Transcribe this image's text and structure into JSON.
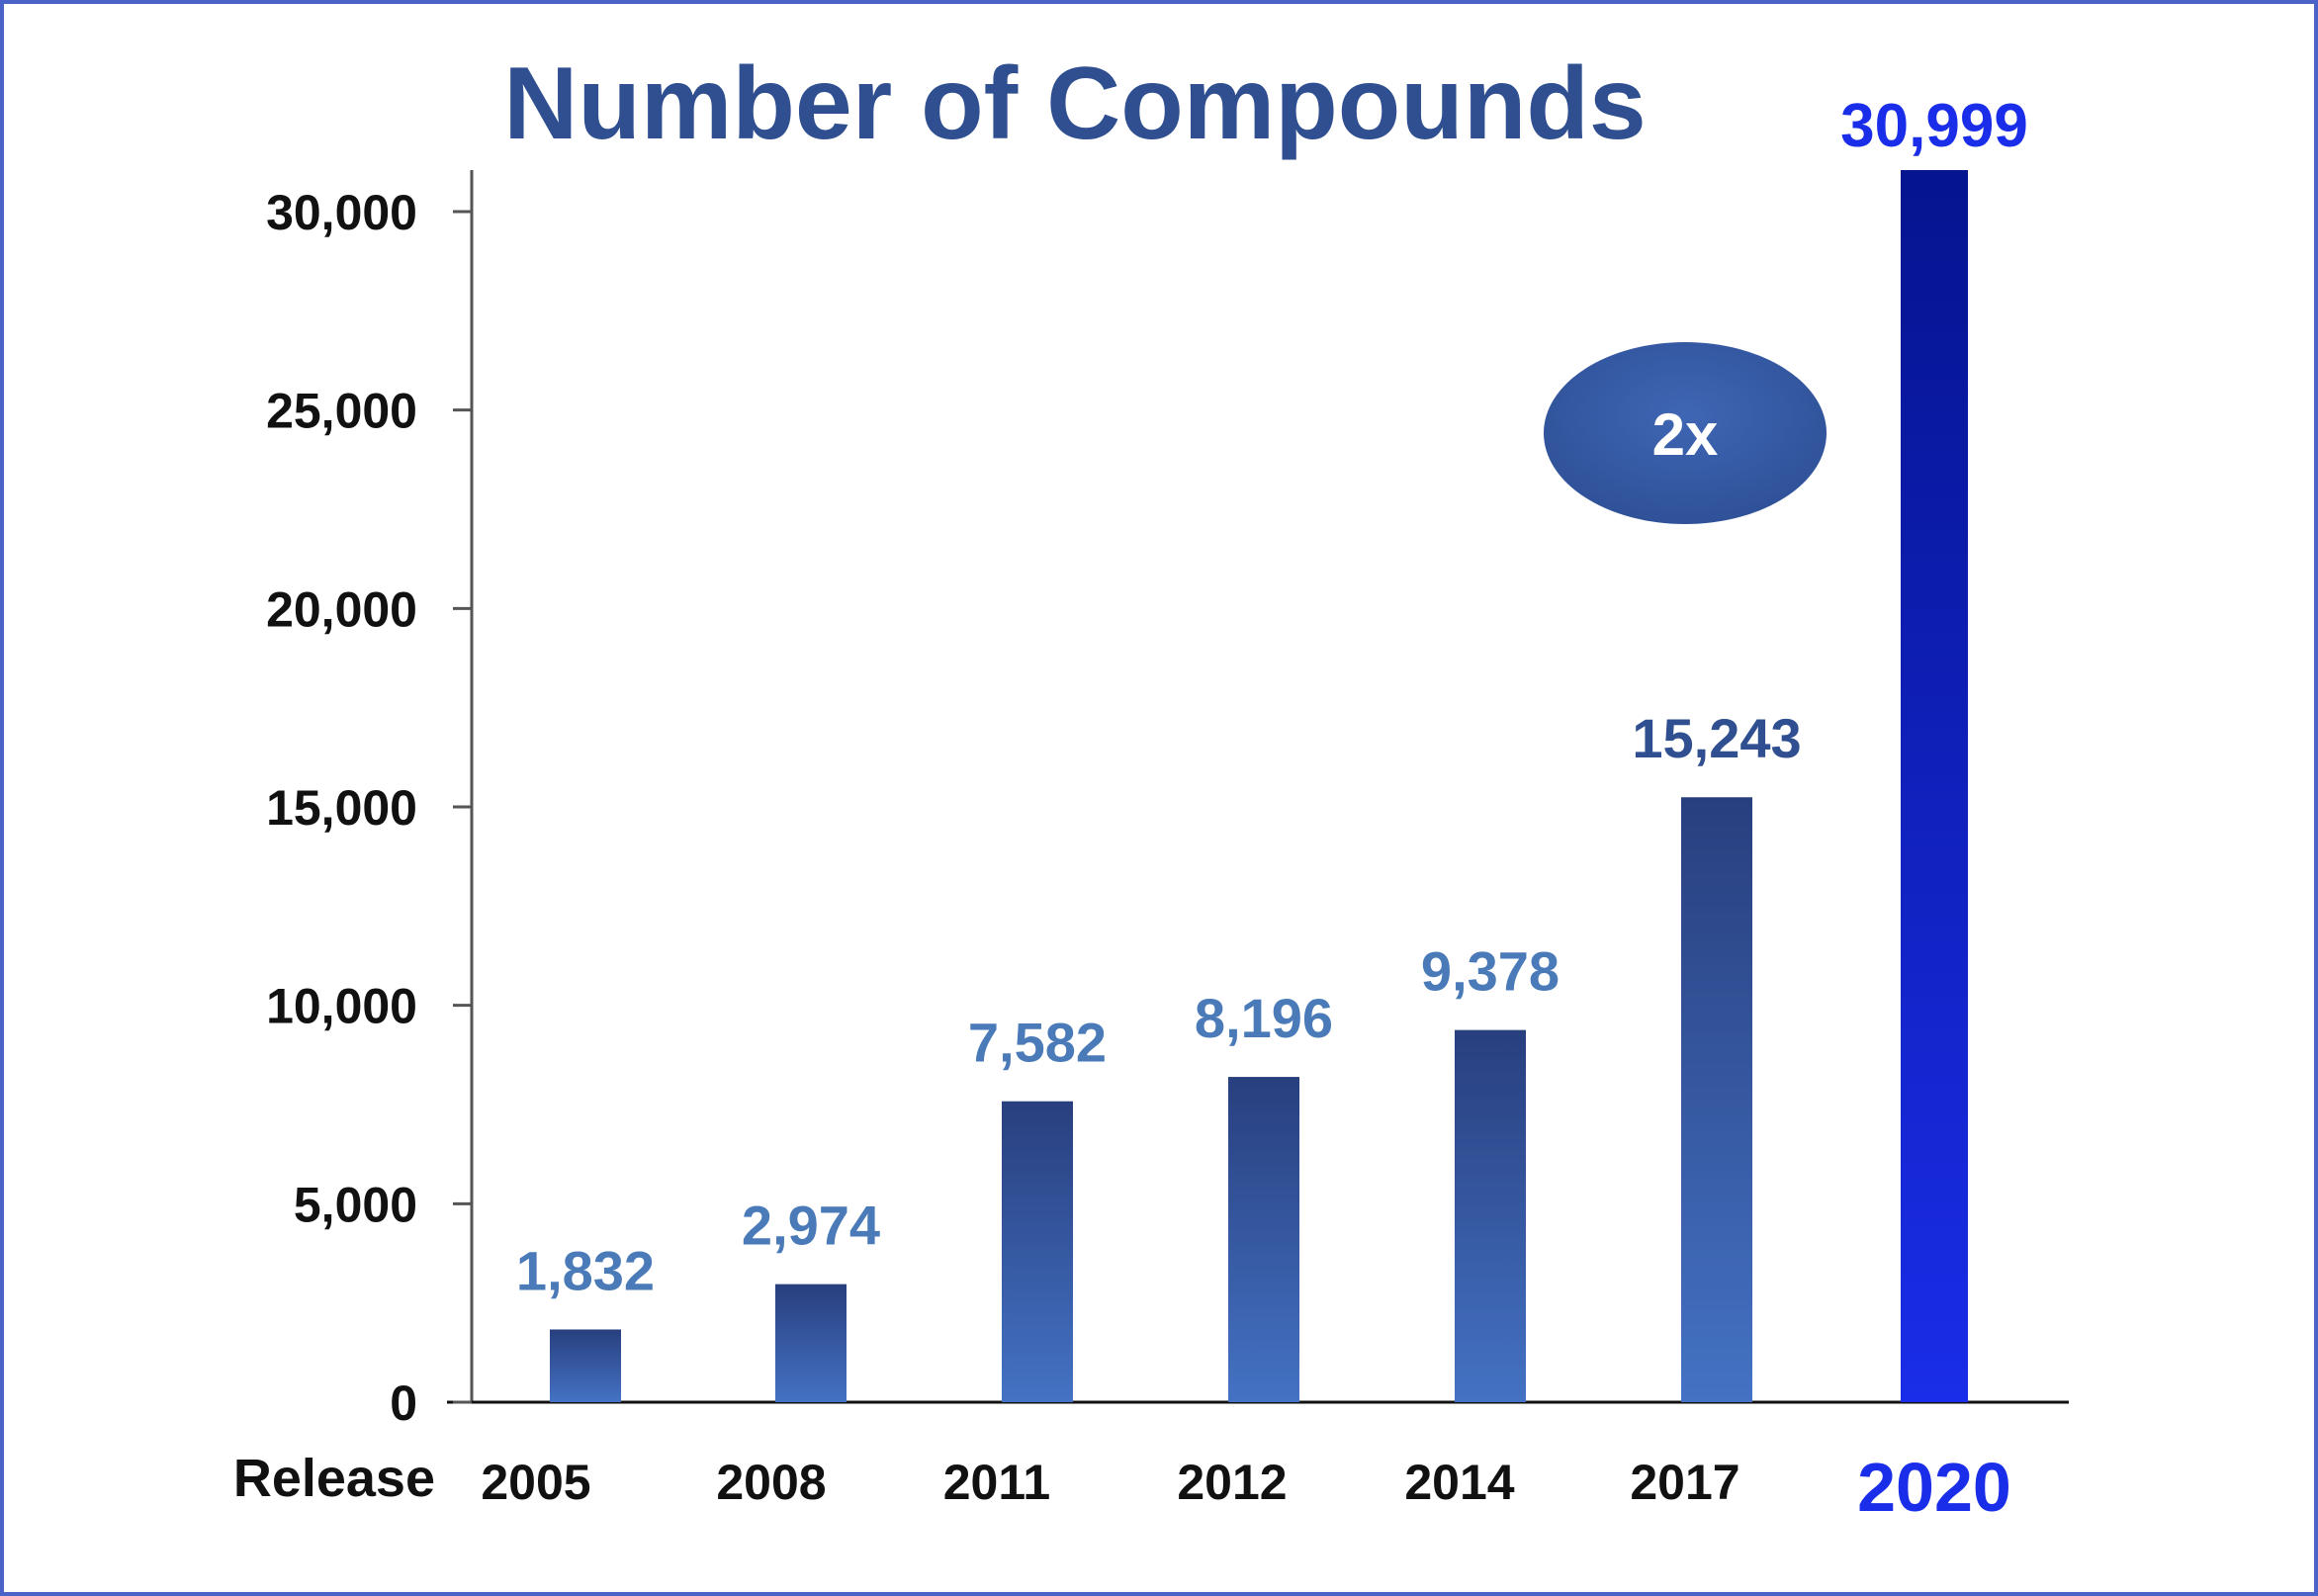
{
  "chart_data": {
    "type": "bar",
    "title": "Number of Compounds",
    "xlabel": "Release",
    "ylabel": "",
    "categories": [
      "2005",
      "2008",
      "2011",
      "2012",
      "2014",
      "2017",
      "2020"
    ],
    "values": [
      1832,
      2974,
      7582,
      8196,
      9378,
      15243,
      30999
    ],
    "value_labels": [
      "1,832",
      "2,974",
      "7,582",
      "8,196",
      "9,378",
      "15,243",
      "30,999"
    ],
    "ylim": [
      0,
      30000
    ],
    "yticks": [
      0,
      5000,
      10000,
      15000,
      20000,
      25000,
      30000
    ],
    "ytick_labels": [
      "0",
      "5,000",
      "10,000",
      "15,000",
      "20,000",
      "25,000",
      "30,000"
    ],
    "highlight_category": "2020",
    "annotation": "2x",
    "grid": false,
    "colors": {
      "bar": "#3a62b8",
      "bar_dark": "#283f7e",
      "highlight": "#1a2de8",
      "highlight_dark": "#05148f",
      "title": "#2f4f90",
      "value_label": "#4a7bb8",
      "badge": "#3a5ea8"
    }
  }
}
